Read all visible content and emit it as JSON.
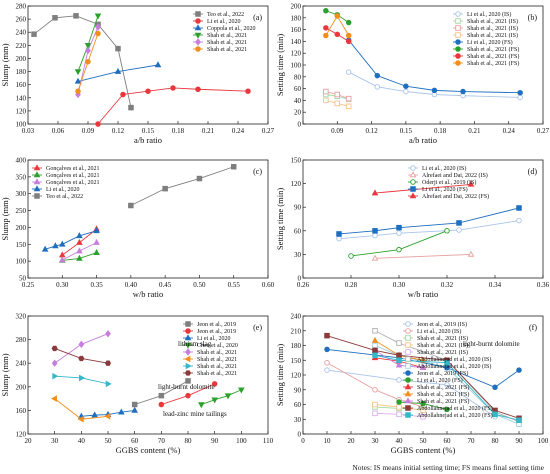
{
  "note": "Notes: IS means initial setting time; FS means final setting time",
  "chart_data": [
    {
      "panel_label": "(a)",
      "type": "line",
      "xlabel": "a/b ratio",
      "ylabel": "Slump (mm)",
      "xlim": [
        0.03,
        0.27
      ],
      "ylim": [
        100,
        280
      ],
      "xticks": [
        0.03,
        0.06,
        0.09,
        0.12,
        0.15,
        0.18,
        0.21,
        0.24,
        0.27
      ],
      "xtick_labels": [
        "0.03",
        "0.06",
        "0.09",
        "0.12",
        "0.15",
        "0.18",
        "0.21",
        "0.24",
        "0.27"
      ],
      "yticks": [
        100,
        120,
        140,
        160,
        180,
        200,
        220,
        240,
        260,
        280
      ],
      "legend": "top-right",
      "series": [
        {
          "name": "Teo et al., 2022",
          "color": "#7f7f7f",
          "marker": "square",
          "x": [
            0.036,
            0.057,
            0.078,
            0.1,
            0.12,
            0.133
          ],
          "y": [
            237,
            262,
            265,
            252,
            215,
            125
          ]
        },
        {
          "name": "Li et al., 2020",
          "color": "#e8383d",
          "marker": "circle",
          "x": [
            0.1,
            0.125,
            0.15,
            0.175,
            0.2,
            0.25
          ],
          "y": [
            100,
            145,
            150,
            155,
            153,
            150
          ]
        },
        {
          "name": "Coppola et al., 2020",
          "color": "#1f6fc0",
          "marker": "triangle",
          "x": [
            0.08,
            0.12,
            0.16
          ],
          "y": [
            165,
            180,
            190
          ]
        },
        {
          "name": "Shah et al., 2021",
          "color": "#2ca02c",
          "marker": "triangle-down",
          "x": [
            0.08,
            0.09,
            0.1
          ],
          "y": [
            180,
            220,
            265
          ]
        },
        {
          "name": "Shah et al., 2021",
          "color": "#c77ddb",
          "marker": "diamond",
          "x": [
            0.08,
            0.09,
            0.1
          ],
          "y": [
            145,
            212,
            248
          ]
        },
        {
          "name": "Shah et al., 2021",
          "color": "#f28e1c",
          "marker": "circle",
          "x": [
            0.08,
            0.09,
            0.1
          ],
          "y": [
            150,
            195,
            238
          ]
        }
      ]
    },
    {
      "panel_label": "(b)",
      "type": "line",
      "xlabel": "a/b ratio",
      "ylabel": "Setting time (min)",
      "xlim": [
        0.06,
        0.27
      ],
      "ylim": [
        0,
        200
      ],
      "xticks": [
        0.06,
        0.09,
        0.12,
        0.15,
        0.18,
        0.21,
        0.24,
        0.27
      ],
      "xtick_labels": [
        "",
        "0.09",
        "0.12",
        "0.15",
        "0.18",
        "0.21",
        "0.24",
        "0.27"
      ],
      "yticks": [
        0,
        20,
        40,
        60,
        80,
        100,
        120,
        140,
        160,
        180,
        200
      ],
      "legend": "top-right",
      "series": [
        {
          "name": "Li et al., 2020 (IS)",
          "color": "#a9c4e8",
          "marker": "circle-open",
          "x": [
            0.1,
            0.125,
            0.15,
            0.175,
            0.2,
            0.25
          ],
          "y": [
            88,
            63,
            55,
            50,
            48,
            45
          ]
        },
        {
          "name": "Shah et al., 2021 (IS)",
          "color": "#a6d8a0",
          "marker": "square-open",
          "x": [
            0.08,
            0.09,
            0.1
          ],
          "y": [
            50,
            47,
            42
          ]
        },
        {
          "name": "Shah et al., 2021 (IS)",
          "color": "#e8a0a0",
          "marker": "square-open",
          "x": [
            0.08,
            0.09,
            0.1
          ],
          "y": [
            55,
            50,
            43
          ]
        },
        {
          "name": "Shah et al., 2021 (IS)",
          "color": "#f7c48a",
          "marker": "square-open",
          "x": [
            0.08,
            0.09,
            0.1
          ],
          "y": [
            40,
            35,
            30
          ]
        },
        {
          "name": "Li et al., 2020 (FS)",
          "color": "#1f6fc0",
          "marker": "circle",
          "x": [
            0.1,
            0.125,
            0.15,
            0.175,
            0.2,
            0.25
          ],
          "y": [
            142,
            82,
            64,
            57,
            55,
            53
          ]
        },
        {
          "name": "Shah et al., 2021 (FS)",
          "color": "#2ca02c",
          "marker": "circle",
          "x": [
            0.08,
            0.09,
            0.1
          ],
          "y": [
            192,
            185,
            172
          ]
        },
        {
          "name": "Shah et al., 2021 (FS)",
          "color": "#e8383d",
          "marker": "circle",
          "x": [
            0.08,
            0.09,
            0.1
          ],
          "y": [
            163,
            152,
            140
          ]
        },
        {
          "name": "Shah et al., 2021 (FS)",
          "color": "#f28e1c",
          "marker": "circle",
          "x": [
            0.08,
            0.09,
            0.1
          ],
          "y": [
            150,
            183,
            150
          ]
        }
      ]
    },
    {
      "panel_label": "(c)",
      "type": "line",
      "xlabel": "w/b ratio",
      "ylabel": "Slump (mm)",
      "xlim": [
        0.25,
        0.6
      ],
      "ylim": [
        50,
        400
      ],
      "xticks": [
        0.25,
        0.3,
        0.35,
        0.4,
        0.45,
        0.5,
        0.55,
        0.6
      ],
      "xtick_labels": [
        "0.25",
        "0.30",
        "0.35",
        "0.40",
        "0.45",
        "0.50",
        "0.55",
        "0.60"
      ],
      "yticks": [
        50,
        100,
        150,
        200,
        250,
        300,
        350,
        400
      ],
      "legend": "top-left",
      "series": [
        {
          "name": "Gonçalves et al., 2021",
          "color": "#e8383d",
          "marker": "triangle",
          "x": [
            0.3,
            0.325,
            0.35
          ],
          "y": [
            118,
            155,
            195
          ]
        },
        {
          "name": "Gonçalves et al., 2021",
          "color": "#2ca02c",
          "marker": "triangle",
          "x": [
            0.3,
            0.325,
            0.35
          ],
          "y": [
            102,
            108,
            125
          ]
        },
        {
          "name": "Gonçalves et al., 2021",
          "color": "#c77ddb",
          "marker": "triangle",
          "x": [
            0.3,
            0.325,
            0.35
          ],
          "y": [
            103,
            130,
            155
          ]
        },
        {
          "name": "Li et al., 2020",
          "color": "#1f6fc0",
          "marker": "triangle",
          "x": [
            0.275,
            0.29,
            0.3,
            0.325,
            0.35
          ],
          "y": [
            135,
            145,
            150,
            175,
            190
          ]
        },
        {
          "name": "Teo et al., 2022",
          "color": "#7f7f7f",
          "marker": "square",
          "x": [
            0.4,
            0.45,
            0.5,
            0.55
          ],
          "y": [
            265,
            315,
            345,
            380
          ]
        }
      ]
    },
    {
      "panel_label": "(d)",
      "type": "line",
      "xlabel": "w/b ratio",
      "ylabel": "Setting time (min)",
      "xlim": [
        0.26,
        0.36
      ],
      "ylim": [
        0,
        150
      ],
      "xticks": [
        0.26,
        0.28,
        0.3,
        0.32,
        0.34,
        0.36
      ],
      "xtick_labels": [
        "0.26",
        "0.28",
        "0.30",
        "0.32",
        "0.34",
        "0.36"
      ],
      "yticks": [
        0,
        30,
        60,
        90,
        120,
        150
      ],
      "legend": "top-right",
      "series": [
        {
          "name": "Li et al., 2020 (IS)",
          "color": "#a9c4e8",
          "marker": "circle-open",
          "x": [
            0.275,
            0.29,
            0.3,
            0.325,
            0.35
          ],
          "y": [
            50,
            54,
            57,
            61,
            73
          ]
        },
        {
          "name": "Alrefaei and Dai, 2022 (IS)",
          "color": "#e8a0a0",
          "marker": "triangle-open",
          "x": [
            0.29,
            0.33
          ],
          "y": [
            25,
            30
          ]
        },
        {
          "name": "Oderji et al., 2019 (IS)",
          "color": "#2ca02c",
          "marker": "circle-open",
          "x": [
            0.28,
            0.3,
            0.32
          ],
          "y": [
            28,
            36,
            60
          ]
        },
        {
          "name": "Li et al., 2020 (FS)",
          "color": "#1f6fc0",
          "marker": "square",
          "x": [
            0.275,
            0.29,
            0.3,
            0.325,
            0.35
          ],
          "y": [
            56,
            60,
            64,
            70,
            89
          ]
        },
        {
          "name": "Alrefaei and Dai, 2022 (FS)",
          "color": "#e8383d",
          "marker": "triangle",
          "x": [
            0.29,
            0.33
          ],
          "y": [
            108,
            119
          ]
        }
      ]
    },
    {
      "panel_label": "(e)",
      "type": "line",
      "xlabel": "GGBS content (%)",
      "ylabel": "Slump (mm)",
      "xlim": [
        20,
        110
      ],
      "ylim": [
        120,
        320
      ],
      "xticks": [
        20,
        30,
        40,
        50,
        60,
        70,
        80,
        90,
        100,
        110
      ],
      "xtick_labels": [
        "20",
        "30",
        "40",
        "50",
        "60",
        "70",
        "80",
        "90",
        "100",
        "110"
      ],
      "yticks": [
        120,
        160,
        200,
        240,
        280,
        320
      ],
      "legend": "top-right",
      "annotations": [
        "lithium slag",
        "light-burnt dolomite",
        "lead-zinc mine tailings"
      ],
      "series": [
        {
          "name": "Jeon et al., 2019",
          "color": "#7f7f7f",
          "marker": "square",
          "x": [
            60,
            70,
            80
          ],
          "y": [
            170,
            185,
            210
          ]
        },
        {
          "name": "Jeon et al., 2019",
          "color": "#e8383d",
          "marker": "circle",
          "x": [
            70,
            80,
            90
          ],
          "y": [
            170,
            185,
            205
          ]
        },
        {
          "name": "Li et al., 2020",
          "color": "#1f6fc0",
          "marker": "triangle",
          "x": [
            40,
            45,
            50,
            55,
            60
          ],
          "y": [
            150,
            152,
            153,
            157,
            160
          ]
        },
        {
          "name": "Chen et al., 2020",
          "color": "#2ca02c",
          "marker": "triangle-down",
          "x": [
            85,
            90,
            95,
            100
          ],
          "y": [
            170,
            178,
            185,
            195
          ]
        },
        {
          "name": "Shah et al., 2021",
          "color": "#c77ddb",
          "marker": "diamond",
          "x": [
            30,
            40,
            50
          ],
          "y": [
            240,
            272,
            290
          ]
        },
        {
          "name": "Shah et al., 2021",
          "color": "#f28e1c",
          "marker": "triangle-left",
          "x": [
            30,
            40,
            50
          ],
          "y": [
            180,
            145,
            150
          ]
        },
        {
          "name": "Shah et al., 2021",
          "color": "#33b8c8",
          "marker": "triangle-right",
          "x": [
            30,
            40,
            50
          ],
          "y": [
            218,
            215,
            205
          ]
        },
        {
          "name": "Shah et al., 2021",
          "color": "#8b3a3a",
          "marker": "hexagon",
          "x": [
            30,
            40,
            50
          ],
          "y": [
            265,
            248,
            240
          ]
        }
      ]
    },
    {
      "panel_label": "(f)",
      "type": "line",
      "xlabel": "GGBS content (%)",
      "ylabel": "Setting time (min)",
      "xlim": [
        0,
        100
      ],
      "ylim": [
        0,
        240
      ],
      "xticks": [
        0,
        10,
        20,
        30,
        40,
        50,
        60,
        70,
        80,
        90,
        100
      ],
      "xtick_labels": [
        "0",
        "10",
        "20",
        "30",
        "40",
        "50",
        "60",
        "70",
        "80",
        "90",
        "100"
      ],
      "yticks": [
        0,
        30,
        60,
        90,
        120,
        150,
        180,
        210,
        240
      ],
      "legend": "top-right",
      "annotations": [
        "light-burnt dolomite"
      ],
      "series": [
        {
          "name": "Jeon et al., 2019 (IS)",
          "color": "#a9c4e8",
          "marker": "circle-open",
          "x": [
            10,
            40,
            60,
            80
          ],
          "y": [
            130,
            110,
            100,
            35
          ]
        },
        {
          "name": "Li et al., 2020 (IS)",
          "color": "#e8a0a0",
          "marker": "circle-open",
          "x": [
            10,
            30,
            40,
            50
          ],
          "y": [
            145,
            90,
            70,
            55
          ]
        },
        {
          "name": "Shah et al., 2021 (IS)",
          "color": "#a6d8a0",
          "marker": "square-open",
          "x": [
            30,
            40,
            50
          ],
          "y": [
            55,
            52,
            50
          ]
        },
        {
          "name": "Shah et al., 2021 (IS)",
          "color": "#f7c48a",
          "marker": "square-open",
          "x": [
            30,
            40,
            50
          ],
          "y": [
            60,
            55,
            48
          ]
        },
        {
          "name": "Shah et al., 2021 (IS)",
          "color": "#d9b0ea",
          "marker": "square-open",
          "x": [
            30,
            40,
            50
          ],
          "y": [
            42,
            40,
            35
          ]
        },
        {
          "name": "Abdollahnejad et al., 2020 (IS)",
          "color": "#b0b0b0",
          "marker": "square-open",
          "x": [
            30,
            40,
            60,
            80,
            90
          ],
          "y": [
            210,
            185,
            150,
            45,
            25
          ]
        },
        {
          "name": "Abdollahnejad et al., 2020 (IS)",
          "color": "#9fd0e0",
          "marker": "square-open",
          "x": [
            30,
            40,
            60,
            80,
            90
          ],
          "y": [
            180,
            160,
            135,
            40,
            20
          ]
        },
        {
          "name": "Jeon et al., 2019 (FS)",
          "color": "#1f6fc0",
          "marker": "circle",
          "x": [
            10,
            40,
            60,
            80,
            90
          ],
          "y": [
            172,
            155,
            135,
            95,
            130
          ]
        },
        {
          "name": "Li et al., 2020 (FS)",
          "color": "#2ca02c",
          "marker": "circle",
          "x": [
            40,
            50,
            60
          ],
          "y": [
            65,
            62,
            50
          ]
        },
        {
          "name": "Shah et al., 2021 (FS)",
          "color": "#e8383d",
          "marker": "triangle",
          "x": [
            30,
            40,
            50
          ],
          "y": [
            155,
            148,
            135
          ]
        },
        {
          "name": "Shah et al., 2021 (FS)",
          "color": "#f28e1c",
          "marker": "triangle",
          "x": [
            30,
            40,
            50
          ],
          "y": [
            190,
            160,
            150
          ]
        },
        {
          "name": "Shah et al., 2021 (FS)",
          "color": "#c77ddb",
          "marker": "triangle",
          "x": [
            30,
            40,
            50
          ],
          "y": [
            170,
            140,
            135
          ]
        },
        {
          "name": "Abdollahnejad et al., 2020 (FS)",
          "color": "#8b3a3a",
          "marker": "square",
          "x": [
            10,
            30,
            40,
            60,
            80,
            90
          ],
          "y": [
            200,
            170,
            160,
            150,
            48,
            32
          ]
        },
        {
          "name": "Abdollahnejad et al., 2020 (FS)",
          "color": "#33b8c8",
          "marker": "square",
          "x": [
            30,
            40,
            60,
            80,
            90
          ],
          "y": [
            160,
            150,
            145,
            40,
            28
          ]
        }
      ]
    }
  ]
}
